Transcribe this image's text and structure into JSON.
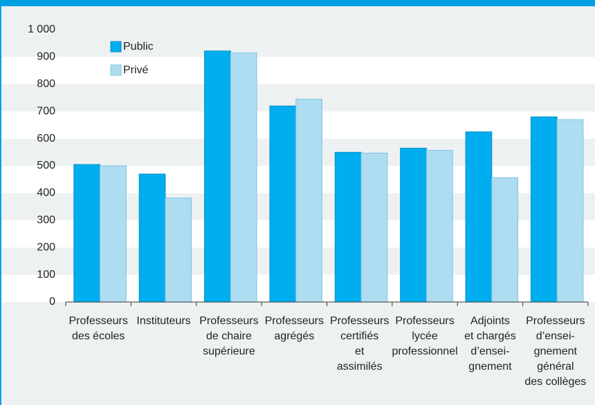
{
  "chart_data": {
    "type": "bar",
    "categories": [
      "Professeurs\ndes écoles",
      "Instituteurs",
      "Professeurs\nde chaire\nsupérieure",
      "Professeurs\nagrégés",
      "Professeurs\ncertifiés\net\nassimilés",
      "Professeurs\nlycée\nprofessionnel",
      "Adjoints\net chargés\nd’ensei-\ngnement",
      "Professeurs\nd’ensei-\ngnement\ngénéral\ndes collèges"
    ],
    "series": [
      {
        "name": "Public",
        "color": "#00aeef",
        "values": [
          505,
          470,
          922,
          720,
          550,
          565,
          625,
          680
        ]
      },
      {
        "name": "Privé",
        "color": "#aedcf0",
        "values": [
          500,
          382,
          915,
          745,
          547,
          557,
          457,
          670
        ]
      }
    ],
    "ylim": [
      0,
      1000
    ],
    "yticks": [
      0,
      100,
      200,
      300,
      400,
      500,
      600,
      700,
      800,
      900,
      {
        "value": 1000,
        "label": "1 000"
      }
    ],
    "grid": true,
    "legend": "upper left"
  }
}
